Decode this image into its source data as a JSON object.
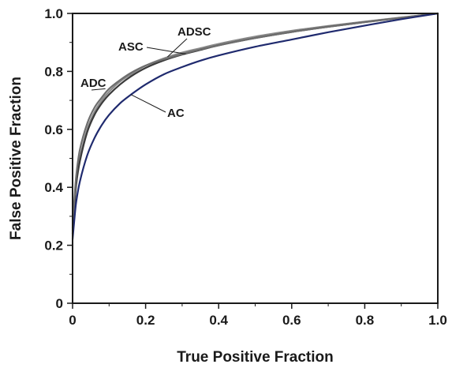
{
  "chart_data": {
    "type": "line",
    "xlabel": "True Positive Fraction",
    "ylabel": "False Positive Fraction",
    "xlim": [
      0,
      1.0
    ],
    "ylim": [
      0,
      1.0
    ],
    "x_ticks": [
      {
        "value": 0,
        "label": "0"
      },
      {
        "value": 0.2,
        "label": "0.2"
      },
      {
        "value": 0.4,
        "label": "0.4"
      },
      {
        "value": 0.6,
        "label": "0.6"
      },
      {
        "value": 0.8,
        "label": "0.8"
      },
      {
        "value": 1.0,
        "label": "1.0"
      }
    ],
    "y_ticks": [
      {
        "value": 0,
        "label": "0"
      },
      {
        "value": 0.2,
        "label": "0.2"
      },
      {
        "value": 0.4,
        "label": "0.4"
      },
      {
        "value": 0.6,
        "label": "0.6"
      },
      {
        "value": 0.8,
        "label": "0.8"
      },
      {
        "value": 1.0,
        "label": "1.0"
      }
    ],
    "grid": false,
    "series": [
      {
        "name": "ADSC",
        "color": "#8a8a8a",
        "points": [
          [
            0,
            0.25
          ],
          [
            0.005,
            0.34
          ],
          [
            0.01,
            0.42
          ],
          [
            0.02,
            0.5
          ],
          [
            0.04,
            0.6
          ],
          [
            0.06,
            0.66
          ],
          [
            0.08,
            0.7
          ],
          [
            0.1,
            0.73
          ],
          [
            0.13,
            0.765
          ],
          [
            0.16,
            0.79
          ],
          [
            0.2,
            0.82
          ],
          [
            0.25,
            0.845
          ],
          [
            0.3,
            0.865
          ],
          [
            0.35,
            0.88
          ],
          [
            0.4,
            0.895
          ],
          [
            0.5,
            0.92
          ],
          [
            0.6,
            0.94
          ],
          [
            0.7,
            0.957
          ],
          [
            0.8,
            0.972
          ],
          [
            0.9,
            0.986
          ],
          [
            1.0,
            1.0
          ]
        ],
        "label_anchor": [
          0.26,
          0.85
        ]
      },
      {
        "name": "ASC",
        "color": "#3a3a3a",
        "points": [
          [
            0,
            0.24
          ],
          [
            0.005,
            0.33
          ],
          [
            0.01,
            0.41
          ],
          [
            0.02,
            0.49
          ],
          [
            0.04,
            0.59
          ],
          [
            0.06,
            0.65
          ],
          [
            0.08,
            0.69
          ],
          [
            0.1,
            0.72
          ],
          [
            0.13,
            0.755
          ],
          [
            0.16,
            0.783
          ],
          [
            0.2,
            0.812
          ],
          [
            0.25,
            0.838
          ],
          [
            0.3,
            0.858
          ],
          [
            0.35,
            0.874
          ],
          [
            0.4,
            0.89
          ],
          [
            0.5,
            0.915
          ],
          [
            0.6,
            0.936
          ],
          [
            0.7,
            0.954
          ],
          [
            0.8,
            0.97
          ],
          [
            0.9,
            0.985
          ],
          [
            1.0,
            1.0
          ]
        ],
        "label_anchor": [
          0.31,
          0.86
        ]
      },
      {
        "name": "ADC",
        "color": "#6e6e6e",
        "points": [
          [
            0,
            0.26
          ],
          [
            0.005,
            0.36
          ],
          [
            0.01,
            0.44
          ],
          [
            0.02,
            0.53
          ],
          [
            0.04,
            0.62
          ],
          [
            0.06,
            0.675
          ],
          [
            0.08,
            0.71
          ],
          [
            0.1,
            0.74
          ],
          [
            0.13,
            0.77
          ],
          [
            0.16,
            0.795
          ],
          [
            0.2,
            0.82
          ],
          [
            0.25,
            0.842
          ],
          [
            0.3,
            0.86
          ],
          [
            0.35,
            0.876
          ],
          [
            0.4,
            0.89
          ],
          [
            0.5,
            0.915
          ],
          [
            0.6,
            0.936
          ],
          [
            0.7,
            0.954
          ],
          [
            0.8,
            0.97
          ],
          [
            0.9,
            0.985
          ],
          [
            1.0,
            1.0
          ]
        ],
        "label_anchor": [
          0.09,
          0.74
        ]
      },
      {
        "name": "AC",
        "color": "#1f2a6e",
        "points": [
          [
            0,
            0.22
          ],
          [
            0.005,
            0.29
          ],
          [
            0.01,
            0.35
          ],
          [
            0.02,
            0.42
          ],
          [
            0.04,
            0.51
          ],
          [
            0.06,
            0.57
          ],
          [
            0.08,
            0.615
          ],
          [
            0.1,
            0.65
          ],
          [
            0.13,
            0.69
          ],
          [
            0.16,
            0.72
          ],
          [
            0.2,
            0.755
          ],
          [
            0.25,
            0.79
          ],
          [
            0.3,
            0.815
          ],
          [
            0.35,
            0.837
          ],
          [
            0.4,
            0.855
          ],
          [
            0.5,
            0.885
          ],
          [
            0.6,
            0.91
          ],
          [
            0.7,
            0.935
          ],
          [
            0.8,
            0.958
          ],
          [
            0.9,
            0.98
          ],
          [
            1.0,
            1.0
          ]
        ],
        "label_anchor": [
          0.16,
          0.72
        ]
      }
    ]
  }
}
